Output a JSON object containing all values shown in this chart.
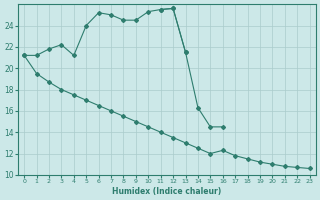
{
  "xlabel": "Humidex (Indice chaleur)",
  "line_color": "#2e7d6e",
  "bg_color": "#cce8e8",
  "grid_color": "#aacccc",
  "ylim": [
    10,
    26
  ],
  "xlim": [
    -0.5,
    23.5
  ],
  "yticks": [
    10,
    12,
    14,
    16,
    18,
    20,
    22,
    24
  ],
  "xticks": [
    0,
    1,
    2,
    3,
    4,
    5,
    6,
    7,
    8,
    9,
    10,
    11,
    12,
    13,
    14,
    15,
    16,
    17,
    18,
    19,
    20,
    21,
    22,
    23
  ],
  "line1_x": [
    0,
    1,
    2,
    3,
    4,
    5,
    6,
    7,
    8,
    9,
    10,
    11,
    12,
    13
  ],
  "line1_y": [
    21.2,
    21.2,
    21.8,
    22.2,
    21.2,
    24.0,
    25.2,
    25.0,
    24.5,
    24.5,
    25.3,
    25.5,
    25.6,
    21.5
  ],
  "line2_x": [
    11,
    12,
    13,
    14,
    15,
    16
  ],
  "line2_y": [
    25.5,
    25.6,
    21.5,
    16.3,
    14.5,
    14.5
  ],
  "line3_x": [
    0,
    1,
    2,
    3,
    4,
    5,
    6,
    7,
    8,
    9,
    10,
    11,
    12,
    13,
    14,
    15,
    16,
    17,
    18,
    19,
    20,
    21,
    22,
    23
  ],
  "line3_y": [
    21.2,
    19.5,
    18.7,
    18.0,
    17.5,
    17.0,
    16.5,
    16.0,
    15.5,
    15.0,
    14.5,
    14.0,
    13.5,
    13.0,
    12.5,
    12.0,
    12.3,
    11.8,
    11.5,
    11.2,
    11.0,
    10.8,
    10.7,
    10.6
  ]
}
